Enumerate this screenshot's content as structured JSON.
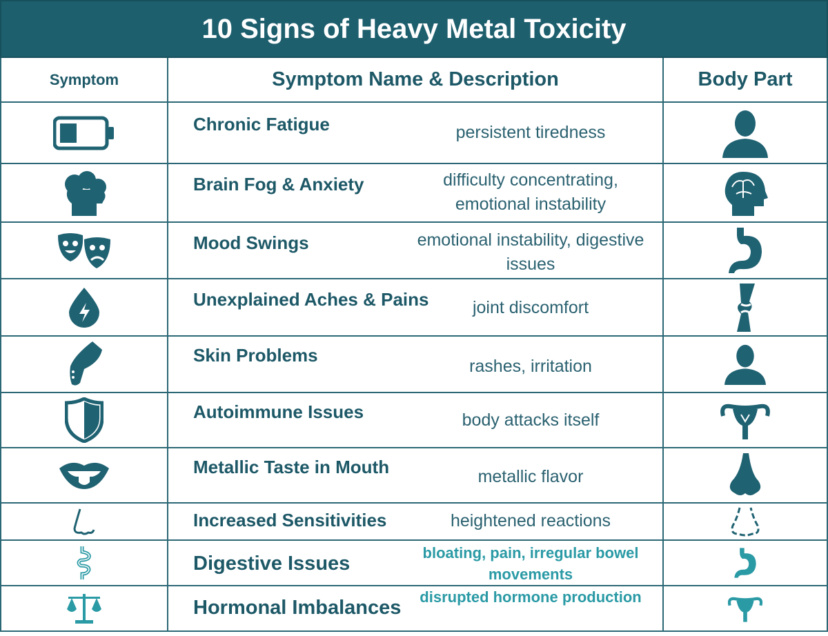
{
  "title": "10 Signs of Heavy Metal Toxicity",
  "headers": {
    "symptom": "Symptom",
    "name_desc": "Symptom Name & Description",
    "body_part": "Body Part"
  },
  "rows": [
    {
      "name": "Chronic Fatigue",
      "description": "persistent tiredness",
      "symptom_icon": "battery-low-icon",
      "body_icon": "person-bust-icon"
    },
    {
      "name": "Brain Fog & Anxiety",
      "description": "difficulty concentrating, emotional instability",
      "symptom_icon": "cloudy-head-icon",
      "body_icon": "head-brain-icon"
    },
    {
      "name": "Mood Swings",
      "description": "emotional instability, digestive issues",
      "symptom_icon": "theater-masks-icon",
      "body_icon": "stomach-icon"
    },
    {
      "name": "Unexplained Aches & Pains",
      "description": "joint discomfort",
      "symptom_icon": "drop-lightning-icon",
      "body_icon": "knee-joint-icon"
    },
    {
      "name": "Skin Problems",
      "description": "rashes, irritation",
      "symptom_icon": "arm-icon",
      "body_icon": "person-bust-icon"
    },
    {
      "name": "Autoimmune Issues",
      "description": "body attacks itself",
      "symptom_icon": "shield-icon",
      "body_icon": "uterus-icon"
    },
    {
      "name": "Metallic Taste in Mouth",
      "description": "metallic flavor",
      "symptom_icon": "mouth-tongue-icon",
      "body_icon": "nose-icon"
    },
    {
      "name": "Increased Sensitivities",
      "description": "heightened reactions",
      "symptom_icon": "nose-outline-icon",
      "body_icon": "nose-dashed-icon"
    },
    {
      "name": "Digestive Issues",
      "description": "bloating, pain, irregular bowel movements",
      "symptom_icon": "intestine-icon",
      "body_icon": "stomach-icon"
    },
    {
      "name": "Hormonal Imbalances",
      "description": "disrupted hormone production",
      "symptom_icon": "balance-scale-icon",
      "body_icon": "uterus-icon"
    }
  ],
  "colors": {
    "header_bg": "#1e5f6e",
    "text": "#1d5867",
    "accent_light": "#2a9aa5"
  }
}
